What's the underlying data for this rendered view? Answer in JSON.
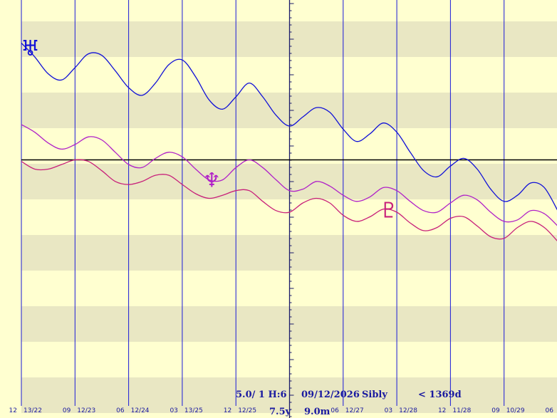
{
  "chart_data": {
    "type": "line",
    "title": "",
    "xlabel": "",
    "ylabel": "",
    "grid": true,
    "x_tick_labels": [
      {
        "major": "12",
        "minor": "13/22"
      },
      {
        "major": "09",
        "minor": "12/23"
      },
      {
        "major": "06",
        "minor": "12/24"
      },
      {
        "major": "03",
        "minor": "13/25"
      },
      {
        "major": "12",
        "minor": "12/25"
      },
      {
        "major": "",
        "minor": ""
      },
      {
        "major": "06",
        "minor": "12/27"
      },
      {
        "major": "03",
        "minor": "12/28"
      },
      {
        "major": "12",
        "minor": "11/28"
      },
      {
        "major": "09",
        "minor": "10/29"
      },
      {
        "major": "06",
        "minor": ""
      }
    ],
    "series": [
      {
        "name": "",
        "symbol": "uranus-glyph",
        "color": "#1010d8",
        "x": [
          0,
          0.25,
          0.5,
          0.75,
          1,
          1.25,
          1.5,
          1.75,
          2,
          2.25,
          2.5,
          2.75,
          3,
          3.25,
          3.5,
          3.75,
          4,
          4.25,
          4.5,
          4.75,
          5,
          5.25,
          5.5,
          5.75,
          6,
          6.25,
          6.5,
          6.75,
          7,
          7.25,
          7.5,
          7.75,
          8,
          8.25,
          8.5,
          8.75,
          9,
          9.25,
          9.5,
          9.75,
          10
        ],
        "y": [
          16,
          7,
          -4,
          -8,
          0,
          9,
          8,
          -2,
          -13,
          -18,
          -10,
          2,
          5,
          -6,
          -21,
          -27,
          -19,
          -10,
          -19,
          -31,
          -38,
          -32,
          -26,
          -29,
          -40,
          -48,
          -43,
          -36,
          -42,
          -55,
          -67,
          -71,
          -64,
          -59,
          -66,
          -79,
          -87,
          -83,
          -75,
          -78,
          -93
        ]
      },
      {
        "name": "",
        "symbol": "neptune-glyph",
        "color": "#b020c8",
        "x": [
          0,
          0.25,
          0.5,
          0.75,
          1,
          1.25,
          1.5,
          1.75,
          2,
          2.25,
          2.5,
          2.75,
          3,
          3.25,
          3.5,
          3.75,
          4,
          4.25,
          4.5,
          4.75,
          5,
          5.25,
          5.5,
          5.75,
          6,
          6.25,
          6.5,
          6.75,
          7,
          7.25,
          7.5,
          7.75,
          8,
          8.25,
          8.5,
          8.75,
          9,
          9.25,
          9.5,
          9.75,
          10
        ],
        "y": [
          -37,
          -42,
          -49,
          -53,
          -50,
          -45,
          -47,
          -55,
          -63,
          -65,
          -59,
          -55,
          -58,
          -66,
          -73,
          -73,
          -65,
          -60,
          -65,
          -73,
          -80,
          -79,
          -74,
          -77,
          -83,
          -87,
          -84,
          -78,
          -80,
          -87,
          -93,
          -94,
          -88,
          -83,
          -86,
          -94,
          -100,
          -99,
          -93,
          -95,
          -103
        ]
      },
      {
        "name": "",
        "symbol": "pluto-glyph",
        "color": "#c8207a",
        "x": [
          0,
          0.25,
          0.5,
          0.75,
          1,
          1.25,
          1.5,
          1.75,
          2,
          2.25,
          2.5,
          2.75,
          3,
          3.25,
          3.5,
          3.75,
          4,
          4.25,
          4.5,
          4.75,
          5,
          5.25,
          5.5,
          5.75,
          6,
          6.25,
          6.5,
          6.75,
          7,
          7.25,
          7.5,
          7.75,
          8,
          8.25,
          8.5,
          8.75,
          9,
          9.25,
          9.5,
          9.75,
          10
        ],
        "y": [
          -61,
          -66,
          -66,
          -63,
          -60,
          -61,
          -67,
          -74,
          -76,
          -74,
          -70,
          -70,
          -76,
          -82,
          -85,
          -83,
          -80,
          -80,
          -87,
          -93,
          -94,
          -88,
          -85,
          -88,
          -96,
          -100,
          -97,
          -92,
          -94,
          -101,
          -106,
          -104,
          -98,
          -97,
          -103,
          -110,
          -111,
          -104,
          -100,
          -104,
          -113
        ]
      }
    ],
    "marker_glyphs": [
      "♅",
      "♆",
      "♇"
    ],
    "zero_line_y": -60,
    "ylim": [
      -220,
      44
    ],
    "xlim": [
      0,
      10
    ],
    "colors": {
      "background": "#ffffd0",
      "band": "#e9e7c3",
      "grid_vertical": "#1a1ad8",
      "zero_line": "#000000",
      "text": "#1a1aa0"
    }
  },
  "info": {
    "scale": "5.0/ 1 H:6",
    "date": "09/12/2026",
    "system": "Sibly",
    "span": "< 1369d",
    "years": "7.5y",
    "months": "9.0m"
  }
}
